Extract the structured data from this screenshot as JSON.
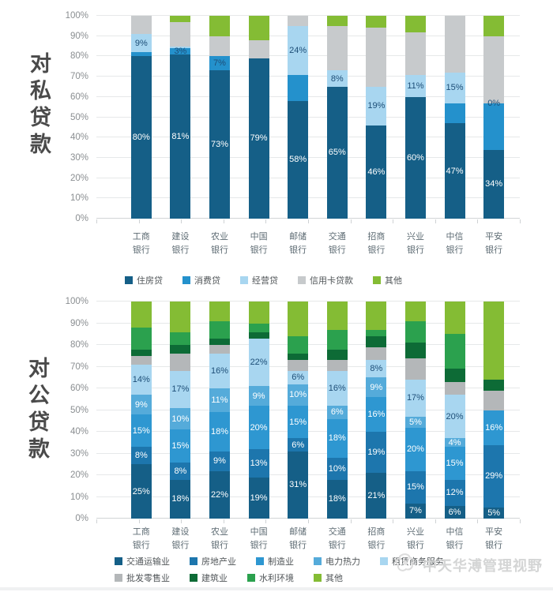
{
  "watermark": {
    "text": "中天华溥管理视野",
    "logo": "swirl-logo",
    "color": "#d4d5d5"
  },
  "chart_data": [
    {
      "type": "bar",
      "stacked": true,
      "units": "percent",
      "title": "对私贷款",
      "grid": true,
      "ylim": [
        0,
        100
      ],
      "yticks": [
        "0%",
        "10%",
        "20%",
        "30%",
        "40%",
        "50%",
        "60%",
        "70%",
        "80%",
        "90%",
        "100%"
      ],
      "legend_position": "bottom",
      "legend_rows": [
        5
      ],
      "categories": [
        "工商银行",
        "建设银行",
        "农业银行",
        "中国银行",
        "邮储银行",
        "交通银行",
        "招商银行",
        "兴业银行",
        "中信银行",
        "平安银行"
      ],
      "series": [
        {
          "name": "住房贷",
          "color": "#155f87",
          "label_color": "#ffffff",
          "values": [
            80,
            81,
            73,
            79,
            58,
            65,
            46,
            60,
            47,
            34
          ],
          "labels": [
            "80%",
            "81%",
            "73%",
            "79%",
            "58%",
            "65%",
            "46%",
            "60%",
            "47%",
            "34%"
          ]
        },
        {
          "name": "消费贷",
          "color": "#2491cc",
          "label_color": "#1d4e77",
          "values": [
            2,
            3,
            7,
            0,
            13,
            0,
            0,
            0,
            10,
            23
          ],
          "labels": [
            "",
            "3%",
            "7%",
            "",
            "",
            "",
            "",
            "",
            "",
            ""
          ]
        },
        {
          "name": "经营贷",
          "color": "#a8d6f0",
          "label_color": "#1d4e77",
          "values": [
            9,
            1,
            0,
            0,
            24,
            8,
            19,
            11,
            15,
            0
          ],
          "labels": [
            "9%",
            "",
            "",
            "",
            "24%",
            "8%",
            "19%",
            "11%",
            "15%",
            "0%"
          ]
        },
        {
          "name": "信用卡贷款",
          "color": "#c7cacc",
          "label_color": "#1d4e77",
          "values": [
            9,
            12,
            10,
            9,
            5,
            22,
            29,
            21,
            28,
            33
          ],
          "labels": [
            "",
            "",
            "",
            "",
            "",
            "",
            "",
            "",
            "",
            ""
          ]
        },
        {
          "name": "其他",
          "color": "#84bc34",
          "label_color": "#1d4e77",
          "values": [
            0,
            3,
            10,
            12,
            0,
            5,
            6,
            8,
            0,
            10
          ],
          "labels": [
            "",
            "",
            "",
            "",
            "",
            "",
            "",
            "",
            "",
            ""
          ]
        }
      ]
    },
    {
      "type": "bar",
      "stacked": true,
      "units": "percent",
      "title": "对公贷款",
      "grid": true,
      "ylim": [
        0,
        100
      ],
      "yticks": [
        "0%",
        "10%",
        "20%",
        "30%",
        "40%",
        "50%",
        "60%",
        "70%",
        "80%",
        "90%",
        "100%"
      ],
      "legend_position": "bottom",
      "legend_rows": [
        5,
        4
      ],
      "categories": [
        "工商银行",
        "建设银行",
        "农业银行",
        "中国银行",
        "邮储银行",
        "交通银行",
        "招商银行",
        "兴业银行",
        "中信银行",
        "平安银行"
      ],
      "series": [
        {
          "name": "交通运输业",
          "color": "#155f87",
          "label_color": "#ffffff",
          "values": [
            25,
            18,
            22,
            19,
            31,
            18,
            21,
            7,
            6,
            5
          ],
          "labels": [
            "25%",
            "18%",
            "22%",
            "19%",
            "31%",
            "18%",
            "21%",
            "7%",
            "6%",
            "5%"
          ]
        },
        {
          "name": "房地产业",
          "color": "#1d76ad",
          "label_color": "#ffffff",
          "values": [
            8,
            8,
            9,
            13,
            6,
            10,
            19,
            15,
            12,
            29
          ],
          "labels": [
            "8%",
            "8%",
            "9%",
            "13%",
            "6%",
            "10%",
            "19%",
            "15%",
            "12%",
            "29%"
          ]
        },
        {
          "name": "制造业",
          "color": "#2e97d1",
          "label_color": "#ffffff",
          "values": [
            15,
            15,
            18,
            20,
            15,
            18,
            16,
            20,
            15,
            16
          ],
          "labels": [
            "15%",
            "15%",
            "18%",
            "20%",
            "15%",
            "18%",
            "16%",
            "20%",
            "15%",
            "16%"
          ]
        },
        {
          "name": "电力热力",
          "color": "#55abda",
          "label_color": "#ffffff",
          "values": [
            9,
            10,
            11,
            9,
            10,
            6,
            9,
            5,
            4,
            0
          ],
          "labels": [
            "9%",
            "10%",
            "11%",
            "9%",
            "10%",
            "6%",
            "9%",
            "5%",
            "4%",
            ""
          ]
        },
        {
          "name": "租赁商务服务",
          "color": "#a8d6f0",
          "label_color": "#1d4e77",
          "values": [
            14,
            17,
            16,
            22,
            6,
            16,
            8,
            17,
            20,
            0
          ],
          "labels": [
            "14%",
            "17%",
            "16%",
            "22%",
            "6%",
            "16%",
            "8%",
            "17%",
            "20%",
            ""
          ]
        },
        {
          "name": "批发零售业",
          "color": "#b4b7b9",
          "label_color": "#1d4e77",
          "values": [
            4,
            8,
            4,
            0,
            5,
            5,
            6,
            10,
            6,
            9
          ],
          "labels": [
            "",
            "",
            "",
            "",
            "",
            "",
            "",
            "",
            "",
            ""
          ]
        },
        {
          "name": "建筑业",
          "color": "#0d6b36",
          "label_color": "#ffffff",
          "values": [
            3,
            4,
            3,
            3,
            3,
            5,
            5,
            7,
            6,
            5
          ],
          "labels": [
            "",
            "",
            "",
            "",
            "",
            "",
            "",
            "",
            "",
            ""
          ]
        },
        {
          "name": "水利环境",
          "color": "#2ba14e",
          "label_color": "#ffffff",
          "values": [
            10,
            6,
            8,
            4,
            8,
            9,
            3,
            10,
            16,
            0
          ],
          "labels": [
            "",
            "",
            "",
            "",
            "",
            "",
            "",
            "",
            "",
            ""
          ]
        },
        {
          "name": "其他",
          "color": "#84bc34",
          "label_color": "#1d4e77",
          "values": [
            12,
            14,
            9,
            10,
            16,
            13,
            13,
            9,
            15,
            36
          ],
          "labels": [
            "",
            "",
            "",
            "",
            "",
            "",
            "",
            "",
            "",
            ""
          ]
        }
      ]
    }
  ]
}
